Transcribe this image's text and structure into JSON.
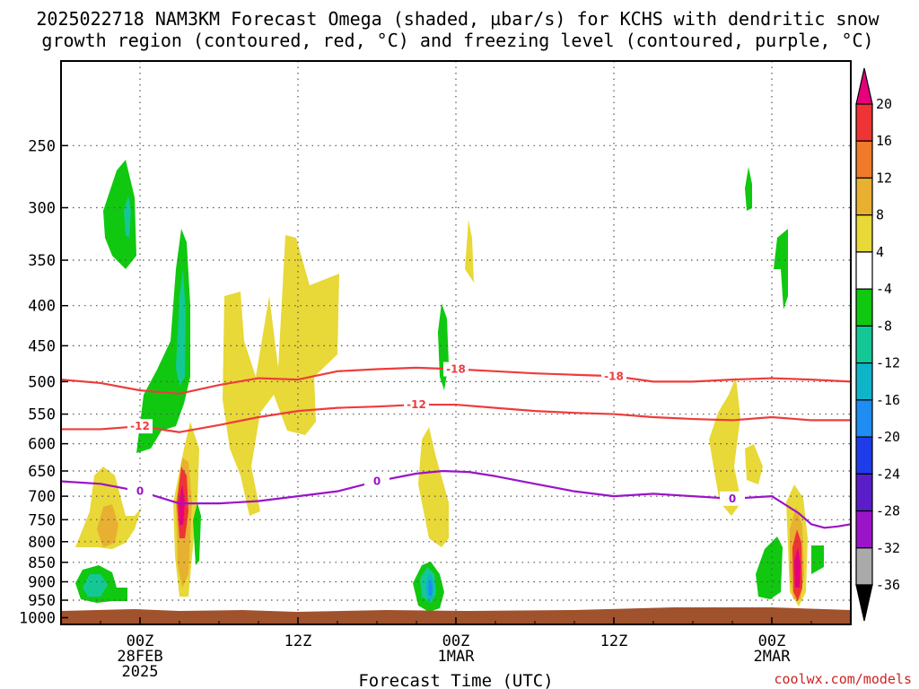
{
  "chart_data": {
    "type": "heatmap",
    "title_lines": [
      "2025022718 NAM3KM Forecast Omega (shaded, µbar/s) for KCHS with dendritic snow",
      "growth region (contoured, red, °C) and freezing level (contoured, purple, °C)"
    ],
    "xlabel": "Forecast Time (UTC)",
    "ylabel": "",
    "y_scale": "pressure (hPa), log",
    "ylim": [
      1020,
      195
    ],
    "y_ticks": [
      "250",
      "300",
      "350",
      "400",
      "450",
      "500",
      "550",
      "600",
      "650",
      "700",
      "750",
      "800",
      "850",
      "900",
      "950",
      "1000"
    ],
    "x_ticks": [
      {
        "label": "00Z",
        "sub": "28FEB",
        "sub2": "2025",
        "hour": 6
      },
      {
        "label": "12Z",
        "sub": "",
        "sub2": "",
        "hour": 18
      },
      {
        "label": "00Z",
        "sub": "1MAR",
        "sub2": "",
        "hour": 30
      },
      {
        "label": "12Z",
        "sub": "",
        "sub2": "",
        "hour": 42
      },
      {
        "label": "00Z",
        "sub": "2MAR",
        "sub2": "",
        "hour": 54
      }
    ],
    "xlim_hours": [
      0,
      60
    ],
    "grid": true,
    "colorbar": {
      "labels": [
        "20",
        "16",
        "12",
        "8",
        "4",
        "-4",
        "-8",
        "-12",
        "-16",
        "-20",
        "-24",
        "-28",
        "-32",
        "-36"
      ],
      "colors": [
        "#e6007e",
        "#ee3434",
        "#ee7a2a",
        "#e8b030",
        "#e8d838",
        "#ffffff",
        "#10c810",
        "#14c896",
        "#10b4c8",
        "#1e8cf0",
        "#1e3ce8",
        "#5a1ec8",
        "#9a14c8",
        "#aaaaaa",
        "#000000"
      ]
    },
    "contour_lines": [
      {
        "name": "-18",
        "color": "#ee3c3c",
        "points": [
          [
            0,
            497
          ],
          [
            3,
            502
          ],
          [
            6,
            513
          ],
          [
            9,
            518
          ],
          [
            12,
            505
          ],
          [
            15,
            495
          ],
          [
            18,
            497
          ],
          [
            21,
            485
          ],
          [
            24,
            482
          ],
          [
            27,
            480
          ],
          [
            30,
            482
          ],
          [
            33,
            485
          ],
          [
            36,
            488
          ],
          [
            39,
            490
          ],
          [
            42,
            492
          ],
          [
            45,
            500
          ],
          [
            48,
            500
          ],
          [
            51,
            497
          ],
          [
            54,
            495
          ],
          [
            57,
            497
          ],
          [
            60,
            500
          ]
        ]
      },
      {
        "name": "-12",
        "color": "#ee3c3c",
        "points": [
          [
            0,
            575
          ],
          [
            3,
            575
          ],
          [
            6,
            570
          ],
          [
            9,
            580
          ],
          [
            12,
            568
          ],
          [
            15,
            555
          ],
          [
            18,
            545
          ],
          [
            21,
            540
          ],
          [
            24,
            538
          ],
          [
            27,
            535
          ],
          [
            30,
            535
          ],
          [
            33,
            540
          ],
          [
            36,
            545
          ],
          [
            39,
            548
          ],
          [
            42,
            550
          ],
          [
            45,
            555
          ],
          [
            48,
            558
          ],
          [
            51,
            560
          ],
          [
            54,
            555
          ],
          [
            57,
            560
          ],
          [
            60,
            560
          ]
        ]
      },
      {
        "name": "0",
        "color": "#9a14c8",
        "points": [
          [
            0,
            670
          ],
          [
            3,
            675
          ],
          [
            6,
            690
          ],
          [
            9,
            715
          ],
          [
            12,
            715
          ],
          [
            15,
            710
          ],
          [
            18,
            700
          ],
          [
            21,
            690
          ],
          [
            24,
            670
          ],
          [
            27,
            655
          ],
          [
            29,
            650
          ],
          [
            31,
            652
          ],
          [
            33,
            660
          ],
          [
            36,
            675
          ],
          [
            39,
            690
          ],
          [
            42,
            700
          ],
          [
            45,
            695
          ],
          [
            48,
            700
          ],
          [
            51,
            705
          ],
          [
            54,
            700
          ],
          [
            56,
            735
          ],
          [
            57,
            760
          ],
          [
            58,
            768
          ],
          [
            59,
            765
          ],
          [
            60,
            760
          ]
        ]
      }
    ]
  }
}
